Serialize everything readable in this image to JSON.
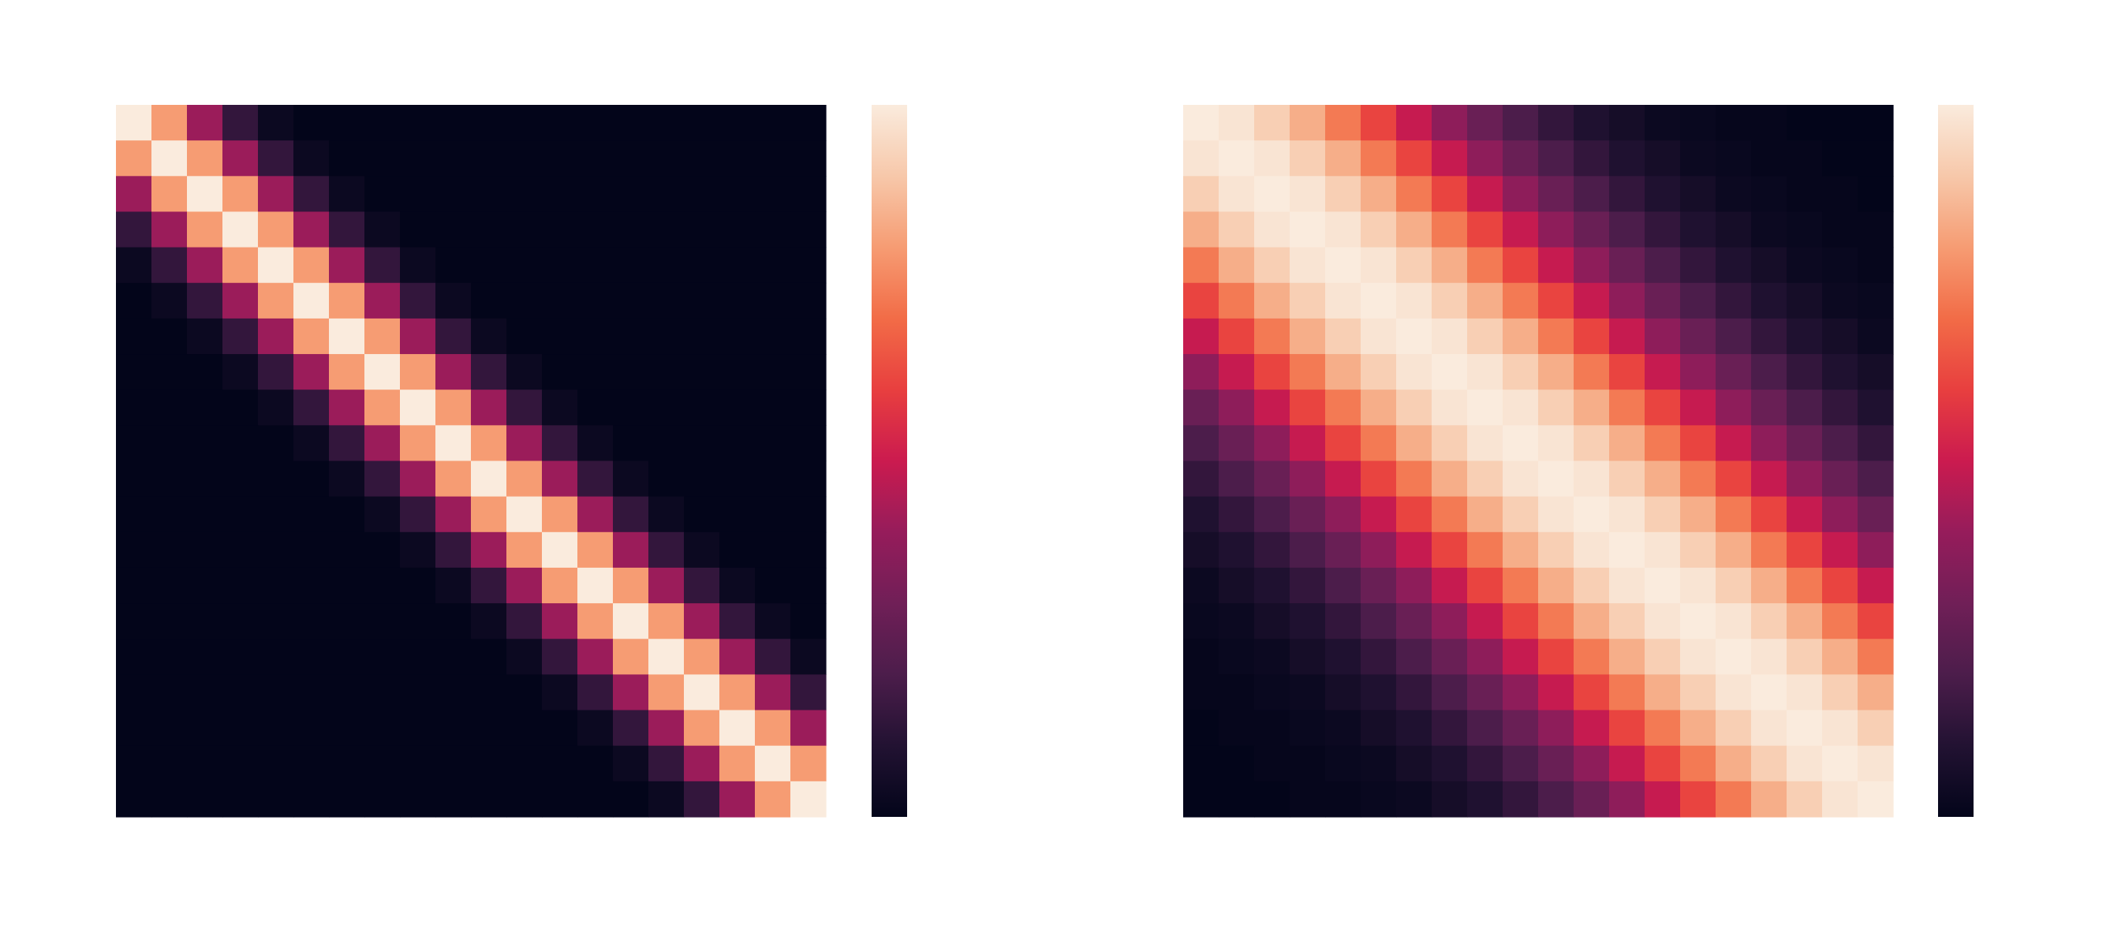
{
  "chart_data": [
    {
      "type": "heatmap",
      "colormap": "rocket",
      "colorbar": true,
      "clim": [
        0,
        1
      ],
      "z": [
        [
          1,
          0.8,
          0.41,
          0.14,
          0.03,
          0,
          0,
          0,
          0,
          0,
          0,
          0,
          0,
          0,
          0,
          0,
          0,
          0,
          0,
          0
        ],
        [
          0.8,
          1,
          0.8,
          0.41,
          0.14,
          0.03,
          0,
          0,
          0,
          0,
          0,
          0,
          0,
          0,
          0,
          0,
          0,
          0,
          0,
          0
        ],
        [
          0.41,
          0.8,
          1,
          0.8,
          0.41,
          0.14,
          0.03,
          0,
          0,
          0,
          0,
          0,
          0,
          0,
          0,
          0,
          0,
          0,
          0,
          0
        ],
        [
          0.14,
          0.41,
          0.8,
          1,
          0.8,
          0.41,
          0.14,
          0.03,
          0,
          0,
          0,
          0,
          0,
          0,
          0,
          0,
          0,
          0,
          0,
          0
        ],
        [
          0.03,
          0.14,
          0.41,
          0.8,
          1,
          0.8,
          0.41,
          0.14,
          0.03,
          0,
          0,
          0,
          0,
          0,
          0,
          0,
          0,
          0,
          0,
          0
        ],
        [
          0,
          0.03,
          0.14,
          0.41,
          0.8,
          1,
          0.8,
          0.41,
          0.14,
          0.03,
          0,
          0,
          0,
          0,
          0,
          0,
          0,
          0,
          0,
          0
        ],
        [
          0,
          0,
          0.03,
          0.14,
          0.41,
          0.8,
          1,
          0.8,
          0.41,
          0.14,
          0.03,
          0,
          0,
          0,
          0,
          0,
          0,
          0,
          0,
          0
        ],
        [
          0,
          0,
          0,
          0.03,
          0.14,
          0.41,
          0.8,
          1,
          0.8,
          0.41,
          0.14,
          0.03,
          0,
          0,
          0,
          0,
          0,
          0,
          0,
          0
        ],
        [
          0,
          0,
          0,
          0,
          0.03,
          0.14,
          0.41,
          0.8,
          1,
          0.8,
          0.41,
          0.14,
          0.03,
          0,
          0,
          0,
          0,
          0,
          0,
          0
        ],
        [
          0,
          0,
          0,
          0,
          0,
          0.03,
          0.14,
          0.41,
          0.8,
          1,
          0.8,
          0.41,
          0.14,
          0.03,
          0,
          0,
          0,
          0,
          0,
          0
        ],
        [
          0,
          0,
          0,
          0,
          0,
          0,
          0.03,
          0.14,
          0.41,
          0.8,
          1,
          0.8,
          0.41,
          0.14,
          0.03,
          0,
          0,
          0,
          0,
          0
        ],
        [
          0,
          0,
          0,
          0,
          0,
          0,
          0,
          0.03,
          0.14,
          0.41,
          0.8,
          1,
          0.8,
          0.41,
          0.14,
          0.03,
          0,
          0,
          0,
          0
        ],
        [
          0,
          0,
          0,
          0,
          0,
          0,
          0,
          0,
          0.03,
          0.14,
          0.41,
          0.8,
          1,
          0.8,
          0.41,
          0.14,
          0.03,
          0,
          0,
          0
        ],
        [
          0,
          0,
          0,
          0,
          0,
          0,
          0,
          0,
          0,
          0.03,
          0.14,
          0.41,
          0.8,
          1,
          0.8,
          0.41,
          0.14,
          0.03,
          0,
          0
        ],
        [
          0,
          0,
          0,
          0,
          0,
          0,
          0,
          0,
          0,
          0,
          0.03,
          0.14,
          0.41,
          0.8,
          1,
          0.8,
          0.41,
          0.14,
          0.03,
          0
        ],
        [
          0,
          0,
          0,
          0,
          0,
          0,
          0,
          0,
          0,
          0,
          0,
          0.03,
          0.14,
          0.41,
          0.8,
          1,
          0.8,
          0.41,
          0.14,
          0.03
        ],
        [
          0,
          0,
          0,
          0,
          0,
          0,
          0,
          0,
          0,
          0,
          0,
          0,
          0.03,
          0.14,
          0.41,
          0.8,
          1,
          0.8,
          0.41,
          0.14
        ],
        [
          0,
          0,
          0,
          0,
          0,
          0,
          0,
          0,
          0,
          0,
          0,
          0,
          0,
          0.03,
          0.14,
          0.41,
          0.8,
          1,
          0.8,
          0.41
        ],
        [
          0,
          0,
          0,
          0,
          0,
          0,
          0,
          0,
          0,
          0,
          0,
          0,
          0,
          0,
          0.03,
          0.14,
          0.41,
          0.8,
          1,
          0.8
        ],
        [
          0,
          0,
          0,
          0,
          0,
          0,
          0,
          0,
          0,
          0,
          0,
          0,
          0,
          0,
          0,
          0.03,
          0.14,
          0.41,
          0.8,
          1
        ]
      ]
    },
    {
      "type": "heatmap",
      "colormap": "rocket",
      "colorbar": true,
      "clim": [
        0,
        1
      ],
      "z": [
        [
          1,
          0.98,
          0.92,
          0.84,
          0.73,
          0.61,
          0.49,
          0.38,
          0.28,
          0.2,
          0.14,
          0.09,
          0.06,
          0.03,
          0.02,
          0.01,
          0.01,
          0,
          0,
          0
        ],
        [
          0.98,
          1,
          0.98,
          0.92,
          0.84,
          0.73,
          0.61,
          0.49,
          0.38,
          0.28,
          0.2,
          0.14,
          0.09,
          0.06,
          0.03,
          0.02,
          0.01,
          0.01,
          0,
          0
        ],
        [
          0.92,
          0.98,
          1,
          0.98,
          0.92,
          0.84,
          0.73,
          0.61,
          0.49,
          0.38,
          0.28,
          0.2,
          0.14,
          0.09,
          0.06,
          0.03,
          0.02,
          0.01,
          0.01,
          0
        ],
        [
          0.84,
          0.92,
          0.98,
          1,
          0.98,
          0.92,
          0.84,
          0.73,
          0.61,
          0.49,
          0.38,
          0.28,
          0.2,
          0.14,
          0.09,
          0.06,
          0.03,
          0.02,
          0.01,
          0.01
        ],
        [
          0.73,
          0.84,
          0.92,
          0.98,
          1,
          0.98,
          0.92,
          0.84,
          0.73,
          0.61,
          0.49,
          0.38,
          0.28,
          0.2,
          0.14,
          0.09,
          0.06,
          0.03,
          0.02,
          0.01
        ],
        [
          0.61,
          0.73,
          0.84,
          0.92,
          0.98,
          1,
          0.98,
          0.92,
          0.84,
          0.73,
          0.61,
          0.49,
          0.38,
          0.28,
          0.2,
          0.14,
          0.09,
          0.06,
          0.03,
          0.02
        ],
        [
          0.49,
          0.61,
          0.73,
          0.84,
          0.92,
          0.98,
          1,
          0.98,
          0.92,
          0.84,
          0.73,
          0.61,
          0.49,
          0.38,
          0.28,
          0.2,
          0.14,
          0.09,
          0.06,
          0.03
        ],
        [
          0.38,
          0.49,
          0.61,
          0.73,
          0.84,
          0.92,
          0.98,
          1,
          0.98,
          0.92,
          0.84,
          0.73,
          0.61,
          0.49,
          0.38,
          0.28,
          0.2,
          0.14,
          0.09,
          0.06
        ],
        [
          0.28,
          0.38,
          0.49,
          0.61,
          0.73,
          0.84,
          0.92,
          0.98,
          1,
          0.98,
          0.92,
          0.84,
          0.73,
          0.61,
          0.49,
          0.38,
          0.28,
          0.2,
          0.14,
          0.09
        ],
        [
          0.2,
          0.28,
          0.38,
          0.49,
          0.61,
          0.73,
          0.84,
          0.92,
          0.98,
          1,
          0.98,
          0.92,
          0.84,
          0.73,
          0.61,
          0.49,
          0.38,
          0.28,
          0.2,
          0.14
        ],
        [
          0.14,
          0.2,
          0.28,
          0.38,
          0.49,
          0.61,
          0.73,
          0.84,
          0.92,
          0.98,
          1,
          0.98,
          0.92,
          0.84,
          0.73,
          0.61,
          0.49,
          0.38,
          0.28,
          0.2
        ],
        [
          0.09,
          0.14,
          0.2,
          0.28,
          0.38,
          0.49,
          0.61,
          0.73,
          0.84,
          0.92,
          0.98,
          1,
          0.98,
          0.92,
          0.84,
          0.73,
          0.61,
          0.49,
          0.38,
          0.28
        ],
        [
          0.06,
          0.09,
          0.14,
          0.2,
          0.28,
          0.38,
          0.49,
          0.61,
          0.73,
          0.84,
          0.92,
          0.98,
          1,
          0.98,
          0.92,
          0.84,
          0.73,
          0.61,
          0.49,
          0.38
        ],
        [
          0.03,
          0.06,
          0.09,
          0.14,
          0.2,
          0.28,
          0.38,
          0.49,
          0.61,
          0.73,
          0.84,
          0.92,
          0.98,
          1,
          0.98,
          0.92,
          0.84,
          0.73,
          0.61,
          0.49
        ],
        [
          0.02,
          0.03,
          0.06,
          0.09,
          0.14,
          0.2,
          0.28,
          0.38,
          0.49,
          0.61,
          0.73,
          0.84,
          0.92,
          0.98,
          1,
          0.98,
          0.92,
          0.84,
          0.73,
          0.61
        ],
        [
          0.01,
          0.02,
          0.03,
          0.06,
          0.09,
          0.14,
          0.2,
          0.28,
          0.38,
          0.49,
          0.61,
          0.73,
          0.84,
          0.92,
          0.98,
          1,
          0.98,
          0.92,
          0.84,
          0.73
        ],
        [
          0.01,
          0.01,
          0.02,
          0.03,
          0.06,
          0.09,
          0.14,
          0.2,
          0.28,
          0.38,
          0.49,
          0.61,
          0.73,
          0.84,
          0.92,
          0.98,
          1,
          0.98,
          0.92,
          0.84
        ],
        [
          0,
          0.01,
          0.01,
          0.02,
          0.03,
          0.06,
          0.09,
          0.14,
          0.2,
          0.28,
          0.38,
          0.49,
          0.61,
          0.73,
          0.84,
          0.92,
          0.98,
          1,
          0.98,
          0.92
        ],
        [
          0,
          0,
          0.01,
          0.01,
          0.02,
          0.03,
          0.06,
          0.09,
          0.14,
          0.2,
          0.28,
          0.38,
          0.49,
          0.61,
          0.73,
          0.84,
          0.92,
          0.98,
          1,
          0.98
        ],
        [
          0,
          0,
          0,
          0.01,
          0.01,
          0.02,
          0.03,
          0.06,
          0.09,
          0.14,
          0.2,
          0.28,
          0.38,
          0.49,
          0.61,
          0.73,
          0.84,
          0.92,
          0.98,
          1
        ]
      ]
    }
  ]
}
